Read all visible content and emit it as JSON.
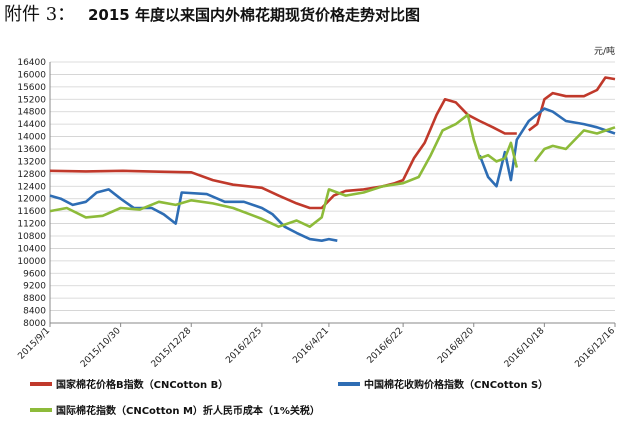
{
  "chart_data": {
    "type": "line",
    "annotation": "附件 3：",
    "title": "2015 年度以来国内外棉花期现货价格走势对比图",
    "y_unit": "元/吨",
    "ylim": [
      8000,
      16400
    ],
    "yticks": [
      8000,
      8400,
      8800,
      9200,
      9600,
      10000,
      10400,
      10800,
      11200,
      11600,
      12000,
      12400,
      12800,
      13200,
      13600,
      14000,
      14400,
      14800,
      15200,
      15600,
      16000,
      16400
    ],
    "xlim": [
      "2015/9/1",
      "2016/12/16"
    ],
    "xticks": [
      "2015/9/1",
      "2015/10/30",
      "2015/12/28",
      "2016/2/25",
      "2016/4/21",
      "2016/6/22",
      "2016/8/20",
      "2016/10/18",
      "2016/12/16"
    ],
    "grid": true,
    "legend": "bottom",
    "series": [
      {
        "name": "国家棉花价格B指数（CNCotton B）",
        "color": "#c0392b",
        "x": [
          "2015/9/1",
          "2015/10/1",
          "2015/11/1",
          "2015/12/1",
          "2015/12/28",
          "2016/1/15",
          "2016/2/1",
          "2016/2/25",
          "2016/3/10",
          "2016/3/25",
          "2016/4/5",
          "2016/4/15",
          "2016/4/25",
          "2016/5/5",
          "2016/5/20",
          "2016/6/5",
          "2016/6/15",
          "2016/6/22",
          "2016/7/1",
          "2016/7/10",
          "2016/7/20",
          "2016/7/27",
          "2016/8/5",
          "2016/8/15",
          "2016/8/25",
          "2016/9/5",
          "2016/9/15",
          "2016/9/25",
          "2016/10/1",
          "2016/10/5",
          "2016/10/12",
          "2016/10/18",
          "2016/10/25",
          "2016/11/5",
          "2016/11/20",
          "2016/12/1",
          "2016/12/8",
          "2016/12/16"
        ],
        "values": [
          12900,
          12880,
          12900,
          12870,
          12850,
          12600,
          12450,
          12350,
          12100,
          11850,
          11700,
          11700,
          12100,
          12250,
          12300,
          12400,
          12500,
          12600,
          13300,
          13800,
          14700,
          15200,
          15100,
          14700,
          14500,
          14300,
          14100,
          14100,
          null,
          14200,
          14400,
          15200,
          15400,
          15300,
          15300,
          15500,
          15900,
          15850
        ]
      },
      {
        "name": "中国棉花收购价格指数（CNCotton S）",
        "color": "#2e6db4",
        "x": [
          "2015/9/1",
          "2015/9/10",
          "2015/9/20",
          "2015/10/1",
          "2015/10/10",
          "2015/10/20",
          "2015/10/30",
          "2015/11/10",
          "2015/11/25",
          "2015/12/5",
          "2015/12/15",
          "2015/12/20",
          "2016/1/10",
          "2016/1/25",
          "2016/2/10",
          "2016/2/25",
          "2016/3/5",
          "2016/3/15",
          "2016/3/25",
          "2016/4/5",
          "2016/4/15",
          "2016/4/21",
          "2016/4/28",
          "2016/7/1",
          "2016/8/25",
          "2016/9/1",
          "2016/9/8",
          "2016/9/15",
          "2016/9/20",
          "2016/9/25",
          "2016/10/5",
          "2016/10/18",
          "2016/10/25",
          "2016/11/5",
          "2016/11/20",
          "2016/12/1",
          "2016/12/16"
        ],
        "values": [
          12100,
          12000,
          11800,
          11900,
          12200,
          12300,
          12000,
          11700,
          11700,
          11500,
          11200,
          12200,
          12150,
          11900,
          11900,
          11700,
          11500,
          11100,
          10900,
          10700,
          10650,
          10700,
          10650,
          null,
          13400,
          12700,
          12400,
          13500,
          12600,
          13900,
          14500,
          14900,
          14800,
          14500,
          14400,
          14300,
          14100
        ]
      },
      {
        "name": "国际棉花指数（CNCotton M）折人民币成本（1%关税）",
        "color": "#8dbb3a",
        "x": [
          "2015/9/1",
          "2015/9/15",
          "2015/10/1",
          "2015/10/15",
          "2015/10/30",
          "2015/11/15",
          "2015/12/1",
          "2015/12/15",
          "2015/12/28",
          "2016/1/15",
          "2016/2/1",
          "2016/2/15",
          "2016/2/25",
          "2016/3/10",
          "2016/3/25",
          "2016/4/5",
          "2016/4/15",
          "2016/4/21",
          "2016/5/5",
          "2016/5/20",
          "2016/6/5",
          "2016/6/22",
          "2016/7/5",
          "2016/7/15",
          "2016/7/25",
          "2016/8/5",
          "2016/8/15",
          "2016/8/20",
          "2016/8/25",
          "2016/9/1",
          "2016/9/8",
          "2016/9/15",
          "2016/9/20",
          "2016/9/25",
          "2016/10/1",
          "2016/10/10",
          "2016/10/18",
          "2016/10/25",
          "2016/11/5",
          "2016/11/20",
          "2016/12/1",
          "2016/12/16"
        ],
        "values": [
          11600,
          11700,
          11400,
          11450,
          11700,
          11650,
          11900,
          11800,
          11950,
          11850,
          11700,
          11500,
          11350,
          11100,
          11300,
          11100,
          11400,
          12300,
          12100,
          12200,
          12400,
          12500,
          12700,
          13400,
          14200,
          14400,
          14700,
          13900,
          13300,
          13400,
          13200,
          13300,
          13800,
          13000,
          null,
          13200,
          13600,
          13700,
          13600,
          14200,
          14100,
          14300
        ]
      }
    ]
  }
}
